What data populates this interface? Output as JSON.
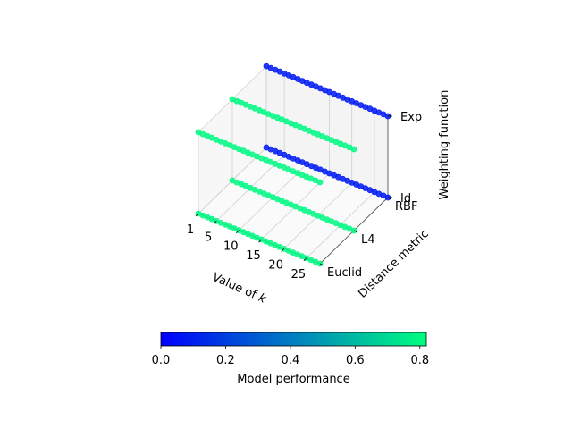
{
  "chart_data": {
    "type": "scatter",
    "projection": "3d",
    "xlabel": "Value of k",
    "ylabel": "Distance metric",
    "zlabel": "Weighting function",
    "x_ticks": [
      1,
      5,
      10,
      15,
      20,
      25
    ],
    "xlim": [
      1,
      28
    ],
    "y_categories": [
      "Euclid",
      "L4",
      "RBF"
    ],
    "z_categories": [
      "Id",
      "Exp"
    ],
    "grid": true,
    "colormap": "winter",
    "colorbar": {
      "label": "Model performance",
      "min": 0.0,
      "max": 0.82,
      "ticks": [
        "0.0",
        "0.2",
        "0.4",
        "0.6",
        "0.8"
      ],
      "tick_values": [
        0.0,
        0.2,
        0.4,
        0.6,
        0.8
      ],
      "color_low": "#0000ff",
      "color_high": "#00ff80",
      "placement": "bottom"
    },
    "series": [
      {
        "distance": "Euclid",
        "weighting": "Id",
        "k_min": 1,
        "k_max": 28,
        "performance": 0.8
      },
      {
        "distance": "L4",
        "weighting": "Id",
        "k_min": 1,
        "k_max": 28,
        "performance": 0.8
      },
      {
        "distance": "RBF",
        "weighting": "Id",
        "k_min": 1,
        "k_max": 28,
        "performance": 0.08
      },
      {
        "distance": "Euclid",
        "weighting": "Exp",
        "k_min": 1,
        "k_max": 28,
        "performance": 0.8
      },
      {
        "distance": "L4",
        "weighting": "Exp",
        "k_min": 1,
        "k_max": 28,
        "performance": 0.8
      },
      {
        "distance": "RBF",
        "weighting": "Exp",
        "k_min": 1,
        "k_max": 28,
        "performance": 0.08
      }
    ]
  }
}
